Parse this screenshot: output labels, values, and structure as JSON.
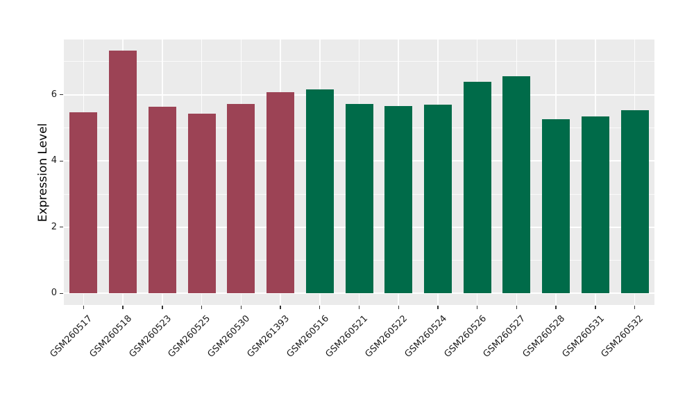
{
  "chart_data": {
    "type": "bar",
    "title": "",
    "xlabel": "",
    "ylabel": "Expression Level",
    "categories": [
      "GSM260517",
      "GSM260518",
      "GSM260523",
      "GSM260525",
      "GSM260530",
      "GSM261393",
      "GSM260516",
      "GSM260521",
      "GSM260522",
      "GSM260524",
      "GSM260526",
      "GSM260527",
      "GSM260528",
      "GSM260531",
      "GSM260532"
    ],
    "values": [
      5.47,
      7.33,
      5.64,
      5.42,
      5.72,
      6.07,
      6.17,
      5.72,
      5.67,
      5.71,
      6.4,
      6.57,
      5.27,
      5.34,
      5.54
    ],
    "bar_colors": [
      "#9c4355",
      "#9c4355",
      "#9c4355",
      "#9c4355",
      "#9c4355",
      "#9c4355",
      "#006b49",
      "#006b49",
      "#006b49",
      "#006b49",
      "#006b49",
      "#006b49",
      "#006b49",
      "#006b49",
      "#006b49"
    ],
    "group_colors": {
      "left_group": "#9c4355",
      "right_group": "#006b49"
    },
    "yticks": [
      0,
      2,
      4,
      6
    ],
    "yticks_minor": [
      1,
      3,
      5,
      7
    ],
    "ylim": [
      -0.35,
      7.67
    ],
    "x_tick_rotation": 45,
    "legend": "none",
    "grid": "major and minor horizontal + vertical category gridlines, white on gray",
    "plot_background": "#ebebeb",
    "grid_color": "#ffffff",
    "text_color": "#1a1a1a"
  }
}
